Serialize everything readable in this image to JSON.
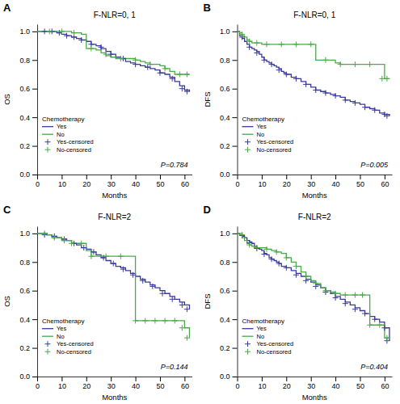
{
  "chart_data": [
    {
      "type": "line",
      "panel_label": "A",
      "title": "F-NLR=0, 1",
      "xlabel": "Months",
      "ylabel": "OS",
      "annotation": "P=0.784",
      "legend_title": "Chemotherapy",
      "legend": "lower left",
      "grid": false,
      "xlim": [
        0,
        63
      ],
      "ylim": [
        0.0,
        1.05
      ],
      "xticks": [
        0,
        10,
        20,
        30,
        40,
        50,
        60
      ],
      "yticks": [
        {
          "value": 0.0,
          "label": "0.0"
        },
        0.2,
        0.4,
        0.6,
        0.8,
        {
          "value": 1.0,
          "label": "1.0"
        }
      ],
      "series": [
        {
          "name": "Yes",
          "type": "step",
          "color": "#3a3a9e",
          "x": [
            0,
            2,
            4,
            6,
            8,
            10,
            12,
            14,
            16,
            18,
            20,
            22,
            24,
            26,
            28,
            30,
            32,
            34,
            36,
            38,
            40,
            42,
            44,
            46,
            48,
            50,
            52,
            54,
            56,
            58,
            60,
            62
          ],
          "values": [
            1.0,
            1.0,
            1.0,
            1.0,
            0.99,
            0.98,
            0.97,
            0.96,
            0.95,
            0.94,
            0.93,
            0.91,
            0.9,
            0.88,
            0.86,
            0.84,
            0.82,
            0.81,
            0.79,
            0.78,
            0.77,
            0.76,
            0.75,
            0.74,
            0.73,
            0.71,
            0.7,
            0.68,
            0.65,
            0.62,
            0.59,
            0.58
          ]
        },
        {
          "name": "No",
          "type": "step",
          "color": "#4aaa4a",
          "x": [
            0,
            2,
            4,
            6,
            8,
            10,
            12,
            14,
            16,
            18,
            20,
            22,
            24,
            26,
            28,
            30,
            32,
            34,
            36,
            38,
            40,
            42,
            44,
            46,
            48,
            50,
            52,
            54,
            56,
            58,
            60,
            62
          ],
          "values": [
            1.0,
            1.0,
            1.0,
            1.0,
            1.0,
            1.0,
            1.0,
            0.99,
            0.99,
            0.98,
            0.88,
            0.88,
            0.87,
            0.85,
            0.83,
            0.82,
            0.81,
            0.81,
            0.81,
            0.81,
            0.8,
            0.79,
            0.78,
            0.77,
            0.77,
            0.76,
            0.74,
            0.72,
            0.7,
            0.7,
            0.7,
            0.7
          ]
        },
        {
          "name": "Yes-censored",
          "type": "scatter",
          "marker": "plus",
          "color": "#3a3a9e",
          "x": [
            3,
            6,
            9,
            12,
            15,
            18,
            22,
            26,
            30,
            35,
            40,
            45,
            50,
            55,
            59,
            61
          ],
          "values": [
            1.0,
            1.0,
            0.99,
            0.97,
            0.96,
            0.94,
            0.91,
            0.89,
            0.84,
            0.81,
            0.77,
            0.75,
            0.71,
            0.67,
            0.6,
            0.58
          ]
        },
        {
          "name": "No-censored",
          "type": "scatter",
          "marker": "plus",
          "color": "#4aaa4a",
          "x": [
            5,
            10,
            15,
            22,
            28,
            34,
            40,
            46,
            52,
            58,
            61
          ],
          "values": [
            1.0,
            1.0,
            0.99,
            0.88,
            0.84,
            0.81,
            0.8,
            0.77,
            0.74,
            0.7,
            0.7
          ]
        }
      ]
    },
    {
      "type": "line",
      "panel_label": "B",
      "title": "F-NLR=0, 1",
      "xlabel": "Months",
      "ylabel": "DFS",
      "annotation": "P=0.005",
      "legend_title": "Chemotherapy",
      "legend": "lower left",
      "grid": false,
      "xlim": [
        0,
        63
      ],
      "ylim": [
        0.0,
        1.05
      ],
      "xticks": [
        0,
        10,
        20,
        30,
        40,
        50,
        60
      ],
      "yticks": [
        {
          "value": 0.0,
          "label": "0.0"
        },
        0.2,
        0.4,
        0.6,
        0.8,
        {
          "value": 1.0,
          "label": "1.0"
        }
      ],
      "series": [
        {
          "name": "Yes",
          "type": "step",
          "color": "#3a3a9e",
          "x": [
            0,
            1,
            2,
            3,
            4,
            5,
            6,
            7,
            8,
            9,
            10,
            11,
            12,
            13,
            14,
            15,
            16,
            17,
            18,
            19,
            20,
            22,
            24,
            26,
            28,
            30,
            32,
            34,
            36,
            38,
            40,
            42,
            44,
            46,
            48,
            50,
            52,
            54,
            56,
            58,
            60,
            62
          ],
          "values": [
            1.0,
            0.97,
            0.95,
            0.93,
            0.91,
            0.89,
            0.88,
            0.87,
            0.86,
            0.84,
            0.82,
            0.8,
            0.79,
            0.78,
            0.77,
            0.76,
            0.75,
            0.74,
            0.72,
            0.71,
            0.7,
            0.68,
            0.67,
            0.65,
            0.63,
            0.61,
            0.59,
            0.58,
            0.57,
            0.56,
            0.55,
            0.54,
            0.52,
            0.51,
            0.5,
            0.49,
            0.47,
            0.46,
            0.45,
            0.43,
            0.42,
            0.41
          ]
        },
        {
          "name": "No",
          "type": "step",
          "color": "#4aaa4a",
          "x": [
            0,
            1,
            2,
            3,
            4,
            5,
            6,
            8,
            10,
            12,
            14,
            16,
            18,
            20,
            22,
            24,
            26,
            28,
            30,
            32,
            34,
            36,
            38,
            40,
            42,
            44,
            46,
            48,
            50,
            52,
            54,
            56,
            58,
            60,
            62
          ],
          "values": [
            1.0,
            0.99,
            0.97,
            0.96,
            0.94,
            0.93,
            0.92,
            0.92,
            0.91,
            0.91,
            0.91,
            0.91,
            0.91,
            0.91,
            0.91,
            0.91,
            0.91,
            0.91,
            0.91,
            0.8,
            0.8,
            0.8,
            0.8,
            0.78,
            0.77,
            0.77,
            0.77,
            0.77,
            0.77,
            0.77,
            0.77,
            0.77,
            0.77,
            0.67,
            0.67
          ]
        },
        {
          "name": "Yes-censored",
          "type": "scatter",
          "marker": "plus",
          "color": "#3a3a9e",
          "x": [
            2,
            5,
            8,
            11,
            14,
            17,
            20,
            24,
            28,
            32,
            36,
            40,
            44,
            48,
            52,
            56,
            60,
            61
          ],
          "values": [
            0.96,
            0.89,
            0.85,
            0.8,
            0.77,
            0.73,
            0.7,
            0.67,
            0.63,
            0.59,
            0.57,
            0.55,
            0.52,
            0.5,
            0.47,
            0.45,
            0.42,
            0.41
          ]
        },
        {
          "name": "No-censored",
          "type": "scatter",
          "marker": "plus",
          "color": "#4aaa4a",
          "x": [
            2,
            5,
            8,
            12,
            18,
            24,
            30,
            36,
            42,
            48,
            54,
            59,
            61
          ],
          "values": [
            0.98,
            0.93,
            0.92,
            0.91,
            0.91,
            0.91,
            0.91,
            0.8,
            0.77,
            0.77,
            0.77,
            0.67,
            0.67
          ]
        }
      ]
    },
    {
      "type": "line",
      "panel_label": "C",
      "title": "F-NLR=2",
      "xlabel": "Months",
      "ylabel": "OS",
      "annotation": "P=0.144",
      "legend_title": "Chemotherapy",
      "legend": "lower left",
      "grid": false,
      "xlim": [
        0,
        63
      ],
      "ylim": [
        0.0,
        1.05
      ],
      "xticks": [
        0,
        10,
        20,
        30,
        40,
        50,
        60
      ],
      "yticks": [
        {
          "value": 0.0,
          "label": "0.0"
        },
        0.2,
        0.4,
        0.6,
        0.8,
        {
          "value": 1.0,
          "label": "1.0"
        }
      ],
      "series": [
        {
          "name": "Yes",
          "type": "step",
          "color": "#3a3a9e",
          "x": [
            0,
            2,
            4,
            6,
            8,
            10,
            12,
            14,
            16,
            18,
            20,
            22,
            24,
            26,
            28,
            30,
            32,
            34,
            36,
            38,
            40,
            42,
            44,
            46,
            48,
            50,
            52,
            54,
            56,
            58,
            60,
            62
          ],
          "values": [
            1.0,
            1.0,
            0.99,
            0.98,
            0.97,
            0.96,
            0.95,
            0.93,
            0.92,
            0.9,
            0.89,
            0.87,
            0.85,
            0.83,
            0.81,
            0.79,
            0.77,
            0.76,
            0.74,
            0.72,
            0.7,
            0.68,
            0.66,
            0.64,
            0.62,
            0.6,
            0.58,
            0.56,
            0.54,
            0.52,
            0.5,
            0.47
          ]
        },
        {
          "name": "No",
          "type": "step",
          "color": "#4aaa4a",
          "x": [
            0,
            2,
            4,
            6,
            8,
            10,
            12,
            14,
            16,
            18,
            20,
            22,
            24,
            26,
            28,
            30,
            32,
            34,
            36,
            38,
            40,
            42,
            44,
            46,
            48,
            50,
            52,
            54,
            56,
            58,
            60,
            62
          ],
          "values": [
            1.0,
            1.0,
            0.99,
            0.97,
            0.97,
            0.95,
            0.95,
            0.93,
            0.93,
            0.93,
            0.88,
            0.84,
            0.84,
            0.84,
            0.84,
            0.84,
            0.84,
            0.84,
            0.84,
            0.84,
            0.39,
            0.39,
            0.39,
            0.39,
            0.39,
            0.39,
            0.39,
            0.39,
            0.39,
            0.39,
            0.34,
            0.27
          ]
        },
        {
          "name": "Yes-censored",
          "type": "scatter",
          "marker": "plus",
          "color": "#3a3a9e",
          "x": [
            3,
            7,
            11,
            15,
            19,
            23,
            27,
            31,
            35,
            39,
            43,
            47,
            51,
            55,
            59,
            61
          ],
          "values": [
            0.99,
            0.98,
            0.96,
            0.93,
            0.9,
            0.87,
            0.83,
            0.79,
            0.75,
            0.71,
            0.67,
            0.63,
            0.58,
            0.54,
            0.5,
            0.47
          ]
        },
        {
          "name": "No-censored",
          "type": "scatter",
          "marker": "plus",
          "color": "#4aaa4a",
          "x": [
            3,
            7,
            11,
            14,
            18,
            22,
            28,
            34,
            40,
            44,
            48,
            52,
            56,
            59,
            61
          ],
          "values": [
            1.0,
            0.97,
            0.95,
            0.93,
            0.93,
            0.84,
            0.84,
            0.84,
            0.39,
            0.39,
            0.39,
            0.39,
            0.39,
            0.34,
            0.27
          ]
        }
      ]
    },
    {
      "type": "line",
      "panel_label": "D",
      "title": "F-NLR=2",
      "xlabel": "Months",
      "ylabel": "DFS",
      "annotation": "P=0.404",
      "legend_title": "Chemotherapy",
      "legend": "lower left",
      "grid": false,
      "xlim": [
        0,
        63
      ],
      "ylim": [
        0.0,
        1.05
      ],
      "xticks": [
        0,
        10,
        20,
        30,
        40,
        50,
        60
      ],
      "yticks": [
        {
          "value": 0.0,
          "label": "0.0"
        },
        0.2,
        0.4,
        0.6,
        0.8,
        {
          "value": 1.0,
          "label": "1.0"
        }
      ],
      "series": [
        {
          "name": "Yes",
          "type": "step",
          "color": "#3a3a9e",
          "x": [
            0,
            1,
            2,
            3,
            4,
            5,
            6,
            7,
            8,
            9,
            10,
            11,
            12,
            13,
            14,
            15,
            16,
            17,
            18,
            20,
            22,
            24,
            26,
            28,
            30,
            32,
            34,
            36,
            38,
            40,
            42,
            44,
            46,
            48,
            50,
            52,
            54,
            56,
            58,
            60,
            62
          ],
          "values": [
            1.0,
            0.99,
            0.98,
            0.97,
            0.95,
            0.94,
            0.93,
            0.91,
            0.9,
            0.89,
            0.88,
            0.86,
            0.85,
            0.83,
            0.82,
            0.81,
            0.8,
            0.79,
            0.77,
            0.76,
            0.74,
            0.72,
            0.7,
            0.68,
            0.66,
            0.64,
            0.62,
            0.6,
            0.58,
            0.56,
            0.54,
            0.52,
            0.5,
            0.48,
            0.46,
            0.44,
            0.42,
            0.4,
            0.38,
            0.34,
            0.25
          ]
        },
        {
          "name": "No",
          "type": "step",
          "color": "#4aaa4a",
          "x": [
            0,
            1,
            2,
            3,
            4,
            5,
            6,
            7,
            8,
            10,
            12,
            14,
            16,
            18,
            20,
            22,
            24,
            26,
            28,
            30,
            32,
            34,
            36,
            38,
            40,
            42,
            44,
            46,
            48,
            50,
            52,
            54,
            56,
            58,
            60,
            62
          ],
          "values": [
            1.0,
            1.0,
            0.97,
            0.95,
            0.93,
            0.92,
            0.91,
            0.9,
            0.9,
            0.9,
            0.89,
            0.88,
            0.87,
            0.86,
            0.83,
            0.8,
            0.77,
            0.73,
            0.7,
            0.67,
            0.65,
            0.62,
            0.6,
            0.59,
            0.58,
            0.57,
            0.57,
            0.57,
            0.57,
            0.57,
            0.57,
            0.36,
            0.36,
            0.36,
            0.27,
            0.27
          ]
        },
        {
          "name": "Yes-censored",
          "type": "scatter",
          "marker": "plus",
          "color": "#3a3a9e",
          "x": [
            2,
            5,
            8,
            11,
            14,
            17,
            20,
            24,
            28,
            32,
            36,
            40,
            44,
            48,
            52,
            56,
            60,
            61
          ],
          "values": [
            0.985,
            0.935,
            0.895,
            0.855,
            0.82,
            0.79,
            0.76,
            0.71,
            0.67,
            0.63,
            0.59,
            0.55,
            0.51,
            0.47,
            0.44,
            0.4,
            0.34,
            0.25
          ]
        },
        {
          "name": "No-censored",
          "type": "scatter",
          "marker": "plus",
          "color": "#4aaa4a",
          "x": [
            2,
            5,
            8,
            12,
            16,
            20,
            24,
            28,
            32,
            36,
            40,
            44,
            48,
            51,
            54,
            58,
            61
          ],
          "values": [
            0.99,
            0.92,
            0.9,
            0.89,
            0.87,
            0.83,
            0.77,
            0.7,
            0.65,
            0.6,
            0.58,
            0.57,
            0.57,
            0.57,
            0.36,
            0.36,
            0.27
          ]
        }
      ]
    }
  ]
}
